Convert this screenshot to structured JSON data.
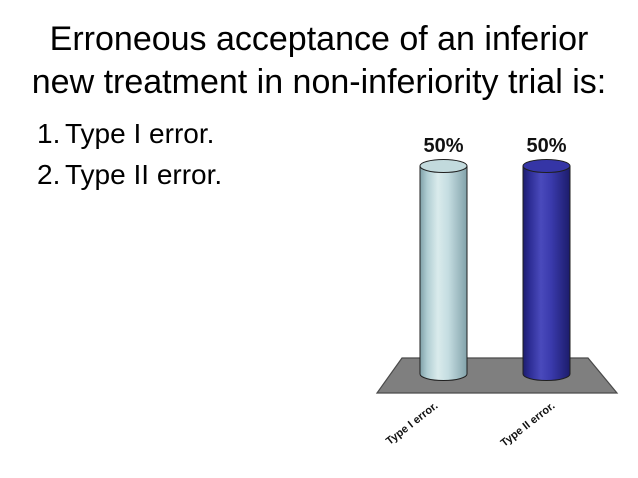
{
  "slide": {
    "title_lines": [
      "Erroneous acceptance of an inferior",
      "new treatment in non-inferiority trial is:"
    ],
    "answers": [
      {
        "number": "1.",
        "label": "Type I error."
      },
      {
        "number": "2.",
        "label": "Type II error."
      }
    ]
  },
  "chart_data": {
    "type": "bar",
    "subtype": "3d-cylinder-poll",
    "title": "",
    "xlabel": "",
    "ylabel": "",
    "categories": [
      "Type I error.",
      "Type II error."
    ],
    "values": [
      50,
      50
    ],
    "value_labels": [
      "50%",
      "50%"
    ],
    "ylim": [
      0,
      50
    ],
    "gridlines": false,
    "legend": false,
    "label_color": "#111111",
    "outline_color": "#1f1f1f",
    "floor_color": "#7f7f7f",
    "floor_outline_color": "#4a4a4a",
    "bar_styles": [
      {
        "top_color": "#c2dadd",
        "gradient_stops": [
          [
            0,
            "#7fa0a8"
          ],
          [
            0.15,
            "#afcdd2"
          ],
          [
            0.38,
            "#daebec"
          ],
          [
            0.6,
            "#c5dde1"
          ],
          [
            1,
            "#82a2aa"
          ]
        ]
      },
      {
        "top_color": "#3535a6",
        "gradient_stops": [
          [
            0,
            "#1d1d6e"
          ],
          [
            0.15,
            "#2e2e96"
          ],
          [
            0.38,
            "#4a4abc"
          ],
          [
            0.6,
            "#3a3aac"
          ],
          [
            1,
            "#1c1c6b"
          ]
        ]
      }
    ]
  }
}
